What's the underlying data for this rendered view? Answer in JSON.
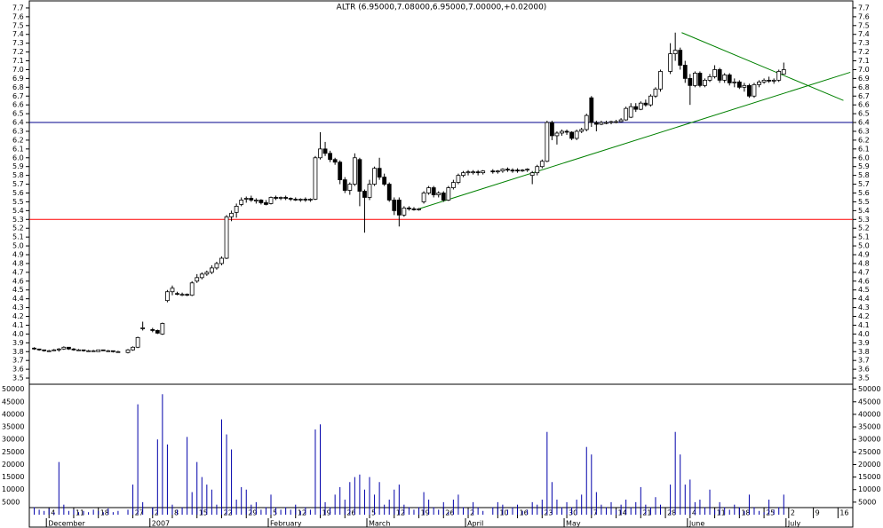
{
  "chart_data": {
    "type": "candlestick",
    "title": "ALTR (6.95000,7.08000,6.95000,7.00000,+0.02000)",
    "xlim": [
      -1,
      166
    ],
    "xticks": [
      {
        "value": 3,
        "label": "4"
      },
      {
        "value": 8,
        "label": "11"
      },
      {
        "value": 13,
        "label": "18"
      },
      {
        "value": 20,
        "label": "27"
      },
      {
        "value": 24,
        "label": "2"
      },
      {
        "value": 28,
        "label": "8"
      },
      {
        "value": 33,
        "label": "15"
      },
      {
        "value": 38,
        "label": "22"
      },
      {
        "value": 43,
        "label": "29"
      },
      {
        "value": 48,
        "label": "5"
      },
      {
        "value": 53,
        "label": "12"
      },
      {
        "value": 58,
        "label": "19"
      },
      {
        "value": 63,
        "label": "26"
      },
      {
        "value": 68,
        "label": "5"
      },
      {
        "value": 73,
        "label": "12"
      },
      {
        "value": 78,
        "label": "19"
      },
      {
        "value": 83,
        "label": "26"
      },
      {
        "value": 88,
        "label": "2"
      },
      {
        "value": 94,
        "label": "10"
      },
      {
        "value": 98,
        "label": "16"
      },
      {
        "value": 103,
        "label": "23"
      },
      {
        "value": 108,
        "label": "30"
      },
      {
        "value": 113,
        "label": "7"
      },
      {
        "value": 118,
        "label": "14"
      },
      {
        "value": 123,
        "label": "21"
      },
      {
        "value": 128,
        "label": "28"
      },
      {
        "value": 133,
        "label": "4"
      },
      {
        "value": 138,
        "label": "11"
      },
      {
        "value": 143,
        "label": "18"
      },
      {
        "value": 148,
        "label": "25"
      },
      {
        "value": 153,
        "label": "2"
      },
      {
        "value": 158,
        "label": "9"
      },
      {
        "value": 163,
        "label": "16"
      }
    ],
    "months": [
      {
        "value": 3,
        "label": "December"
      },
      {
        "value": 24,
        "label": "2007"
      },
      {
        "value": 48,
        "label": "February"
      },
      {
        "value": 68,
        "label": "March"
      },
      {
        "value": 88,
        "label": "April"
      },
      {
        "value": 108,
        "label": "May"
      },
      {
        "value": 133,
        "label": "June"
      },
      {
        "value": 153,
        "label": "July"
      }
    ],
    "ylim": [
      3.43,
      7.77
    ],
    "yticks": [
      3.5,
      3.6,
      3.7,
      3.8,
      3.9,
      {
        "value": 4,
        "label": "4.0"
      },
      4.1,
      4.2,
      4.3,
      4.4,
      4.5,
      4.6,
      4.7,
      4.8,
      4.9,
      {
        "value": 5,
        "label": "5.0"
      },
      5.1,
      5.2,
      5.3,
      5.4,
      5.5,
      5.6,
      5.7,
      5.8,
      5.9,
      {
        "value": 6,
        "label": "6.0"
      },
      6.1,
      6.2,
      6.3,
      6.4,
      6.5,
      6.6,
      6.7,
      6.8,
      6.9,
      {
        "value": 7,
        "label": "7.0"
      },
      7.1,
      7.2,
      7.3,
      7.4,
      7.5,
      7.6,
      7.7
    ],
    "up_color": "#ffffff",
    "down_color": "#000000",
    "ohlc": [
      [
        3.84,
        3.85,
        3.82,
        3.83
      ],
      [
        3.83,
        3.83,
        3.81,
        3.82
      ],
      [
        3.82,
        3.82,
        3.8,
        3.81
      ],
      [
        3.81,
        3.82,
        3.8,
        3.81
      ],
      [
        3.81,
        3.83,
        3.81,
        3.82
      ],
      [
        3.82,
        3.84,
        3.8,
        3.83
      ],
      [
        3.83,
        3.86,
        3.82,
        3.85
      ],
      [
        3.85,
        3.85,
        3.82,
        3.83
      ],
      [
        3.83,
        3.84,
        3.81,
        3.82
      ],
      [
        3.82,
        3.83,
        3.81,
        3.82
      ],
      [
        3.82,
        3.82,
        3.8,
        3.81
      ],
      [
        3.81,
        3.82,
        3.8,
        3.81
      ],
      [
        3.81,
        3.82,
        3.8,
        3.81
      ],
      [
        3.8,
        3.82,
        3.8,
        3.82
      ],
      [
        3.82,
        3.82,
        3.81,
        3.81
      ],
      [
        3.81,
        3.82,
        3.8,
        3.81
      ],
      [
        3.81,
        3.81,
        3.79,
        3.8
      ],
      [
        3.8,
        3.81,
        3.79,
        3.8
      ],
      null,
      [
        3.79,
        3.83,
        3.78,
        3.82
      ],
      [
        3.82,
        3.86,
        3.81,
        3.85
      ],
      [
        3.85,
        3.97,
        3.84,
        3.96
      ],
      [
        4.06,
        4.14,
        4.04,
        4.07
      ],
      null,
      [
        4.05,
        4.07,
        4.02,
        4.04
      ],
      [
        4.04,
        4.05,
        4.0,
        4.01
      ],
      [
        4.0,
        4.13,
        3.99,
        4.12
      ],
      [
        4.38,
        4.5,
        4.36,
        4.48
      ],
      [
        4.48,
        4.55,
        4.44,
        4.52
      ],
      [
        4.46,
        4.48,
        4.44,
        4.45
      ],
      [
        4.45,
        4.47,
        4.43,
        4.45
      ],
      [
        4.45,
        4.46,
        4.43,
        4.44
      ],
      [
        4.44,
        4.6,
        4.43,
        4.58
      ],
      [
        4.6,
        4.68,
        4.58,
        4.64
      ],
      [
        4.64,
        4.7,
        4.62,
        4.68
      ],
      [
        4.68,
        4.72,
        4.66,
        4.7
      ],
      [
        4.7,
        4.78,
        4.68,
        4.75
      ],
      [
        4.75,
        4.82,
        4.73,
        4.8
      ],
      [
        4.8,
        4.88,
        4.78,
        4.86
      ],
      [
        4.86,
        5.35,
        4.85,
        5.33
      ],
      [
        5.33,
        5.4,
        5.28,
        5.37
      ],
      [
        5.38,
        5.48,
        5.32,
        5.45
      ],
      [
        5.47,
        5.55,
        5.45,
        5.52
      ],
      [
        5.53,
        5.56,
        5.49,
        5.54
      ],
      [
        5.54,
        5.57,
        5.5,
        5.52
      ],
      [
        5.51,
        5.54,
        5.48,
        5.52
      ],
      [
        5.52,
        5.53,
        5.47,
        5.49
      ],
      [
        5.49,
        5.52,
        5.46,
        5.47
      ],
      [
        5.48,
        5.56,
        5.47,
        5.55
      ],
      [
        5.55,
        5.57,
        5.52,
        5.54
      ],
      [
        5.54,
        5.56,
        5.52,
        5.55
      ],
      [
        5.55,
        5.57,
        5.52,
        5.54
      ],
      [
        5.54,
        5.55,
        5.51,
        5.53
      ],
      [
        5.53,
        5.55,
        5.51,
        5.52
      ],
      [
        5.52,
        5.54,
        5.5,
        5.53
      ],
      [
        5.53,
        5.55,
        5.5,
        5.52
      ],
      [
        5.52,
        5.54,
        5.5,
        5.53
      ],
      [
        5.53,
        6.02,
        5.52,
        6.0
      ],
      [
        6.0,
        6.29,
        5.98,
        6.1
      ],
      [
        6.1,
        6.18,
        6.02,
        6.05
      ],
      [
        6.05,
        6.08,
        5.95,
        5.98
      ],
      [
        5.98,
        6.0,
        5.92,
        5.95
      ],
      [
        5.95,
        5.97,
        5.7,
        5.75
      ],
      [
        5.75,
        5.78,
        5.6,
        5.63
      ],
      [
        5.63,
        5.72,
        5.58,
        5.7
      ],
      [
        5.7,
        6.05,
        5.68,
        6.0
      ],
      [
        5.98,
        6.0,
        5.45,
        5.62
      ],
      [
        5.62,
        5.64,
        5.15,
        5.55
      ],
      [
        5.55,
        5.75,
        5.52,
        5.7
      ],
      [
        5.7,
        5.9,
        5.68,
        5.88
      ],
      [
        5.88,
        6.0,
        5.75,
        5.78
      ],
      [
        5.78,
        5.82,
        5.68,
        5.7
      ],
      [
        5.7,
        5.72,
        5.5,
        5.52
      ],
      [
        5.52,
        5.55,
        5.35,
        5.4
      ],
      [
        5.52,
        5.55,
        5.22,
        5.35
      ],
      [
        5.35,
        5.45,
        5.33,
        5.43
      ],
      [
        5.43,
        5.45,
        5.4,
        5.42
      ],
      [
        5.42,
        5.44,
        5.4,
        5.41
      ],
      [
        5.41,
        5.43,
        5.4,
        5.42
      ],
      [
        5.5,
        5.62,
        5.48,
        5.6
      ],
      [
        5.6,
        5.68,
        5.58,
        5.66
      ],
      [
        5.66,
        5.68,
        5.55,
        5.58
      ],
      [
        5.58,
        5.62,
        5.55,
        5.6
      ],
      [
        5.6,
        5.62,
        5.5,
        5.52
      ],
      [
        5.52,
        5.68,
        5.51,
        5.66
      ],
      [
        5.66,
        5.75,
        5.64,
        5.72
      ],
      [
        5.72,
        5.82,
        5.7,
        5.8
      ],
      [
        5.8,
        5.85,
        5.78,
        5.83
      ],
      [
        5.83,
        5.86,
        5.8,
        5.84
      ],
      [
        5.84,
        5.86,
        5.81,
        5.84
      ],
      [
        5.84,
        5.86,
        5.8,
        5.83
      ],
      [
        5.83,
        5.86,
        5.81,
        5.85
      ],
      null,
      [
        5.85,
        5.87,
        5.82,
        5.84
      ],
      [
        5.84,
        5.86,
        5.82,
        5.85
      ],
      [
        5.85,
        5.88,
        5.83,
        5.87
      ],
      [
        5.87,
        5.89,
        5.84,
        5.86
      ],
      [
        5.86,
        5.88,
        5.83,
        5.85
      ],
      [
        5.86,
        5.88,
        5.83,
        5.85
      ],
      [
        5.85,
        5.87,
        5.84,
        5.86
      ],
      [
        5.86,
        5.88,
        5.84,
        5.87
      ],
      [
        5.8,
        5.85,
        5.7,
        5.83
      ],
      [
        5.83,
        5.92,
        5.8,
        5.9
      ],
      [
        5.9,
        5.98,
        5.88,
        5.96
      ],
      [
        5.96,
        6.42,
        5.95,
        6.4
      ],
      [
        6.4,
        6.42,
        6.2,
        6.25
      ],
      [
        6.25,
        6.3,
        6.15,
        6.28
      ],
      [
        6.28,
        6.32,
        6.25,
        6.3
      ],
      [
        6.3,
        6.32,
        6.26,
        6.29
      ],
      [
        6.29,
        6.3,
        6.2,
        6.22
      ],
      [
        6.22,
        6.32,
        6.2,
        6.3
      ],
      [
        6.3,
        6.34,
        6.28,
        6.32
      ],
      [
        6.32,
        6.5,
        6.3,
        6.48
      ],
      [
        6.68,
        6.7,
        6.35,
        6.4
      ],
      [
        6.4,
        6.42,
        6.3,
        6.38
      ],
      [
        6.38,
        6.42,
        6.37,
        6.4
      ],
      [
        6.4,
        6.42,
        6.38,
        6.4
      ],
      [
        6.4,
        6.42,
        6.38,
        6.41
      ],
      [
        6.41,
        6.43,
        6.39,
        6.41
      ],
      [
        6.41,
        6.45,
        6.4,
        6.43
      ],
      [
        6.43,
        6.58,
        6.42,
        6.56
      ],
      [
        6.46,
        6.62,
        6.45,
        6.58
      ],
      [
        6.58,
        6.62,
        6.52,
        6.55
      ],
      [
        6.55,
        6.64,
        6.54,
        6.62
      ],
      [
        6.62,
        6.66,
        6.58,
        6.6
      ],
      [
        6.6,
        6.72,
        6.58,
        6.7
      ],
      [
        6.7,
        6.8,
        6.68,
        6.78
      ],
      [
        6.78,
        7.0,
        6.75,
        6.98
      ],
      null,
      [
        6.98,
        7.3,
        6.95,
        7.18
      ],
      [
        7.18,
        7.42,
        7.1,
        7.22
      ],
      [
        7.22,
        7.25,
        7.0,
        7.05
      ],
      [
        7.05,
        7.1,
        6.85,
        6.9
      ],
      [
        6.9,
        6.95,
        6.6,
        6.82
      ],
      [
        6.82,
        6.98,
        6.8,
        6.96
      ],
      [
        6.96,
        6.98,
        6.8,
        6.82
      ],
      [
        6.82,
        6.9,
        6.8,
        6.88
      ],
      [
        6.88,
        6.95,
        6.86,
        6.92
      ],
      [
        6.92,
        7.05,
        6.9,
        7.0
      ],
      [
        7.0,
        7.02,
        6.85,
        6.88
      ],
      [
        6.88,
        6.96,
        6.85,
        6.94
      ],
      [
        6.94,
        6.96,
        6.82,
        6.85
      ],
      [
        6.85,
        6.9,
        6.8,
        6.86
      ],
      [
        6.86,
        6.88,
        6.78,
        6.8
      ],
      [
        6.8,
        6.85,
        6.75,
        6.82
      ],
      [
        6.82,
        6.84,
        6.68,
        6.7
      ],
      [
        6.7,
        6.85,
        6.68,
        6.83
      ],
      [
        6.83,
        6.88,
        6.8,
        6.86
      ],
      [
        6.86,
        6.9,
        6.84,
        6.88
      ],
      [
        6.88,
        6.92,
        6.85,
        6.87
      ],
      [
        6.87,
        6.9,
        6.84,
        6.88
      ],
      [
        6.88,
        7.0,
        6.86,
        6.98
      ],
      [
        6.95,
        7.08,
        6.95,
        7.0
      ]
    ],
    "hlines": [
      {
        "value": 6.4,
        "color": "#00008b"
      },
      {
        "value": 5.3,
        "color": "#ff0000"
      }
    ],
    "trendlines": [
      {
        "color": "#008000",
        "x": [
          78,
          165.5
        ],
        "y": [
          5.42,
          6.97
        ]
      },
      {
        "color": "#008000",
        "x": [
          131.3,
          164.1
        ],
        "y": [
          7.42,
          6.65
        ]
      }
    ],
    "volume": {
      "color": "#0000aa",
      "ylim": [
        0,
        52000
      ],
      "yticks": [
        5000,
        10000,
        15000,
        20000,
        25000,
        30000,
        35000,
        40000,
        45000,
        50000
      ],
      "values": [
        3000,
        2000,
        1500,
        2500,
        1000,
        21000,
        4000,
        1500,
        2000,
        1000,
        1500,
        1000,
        2000,
        1500,
        1000,
        2500,
        1000,
        1500,
        null,
        2000,
        12000,
        44000,
        5000,
        null,
        3000,
        30000,
        48000,
        28000,
        4000,
        2000,
        3000,
        31000,
        9000,
        21000,
        15000,
        12000,
        10000,
        4000,
        38000,
        32000,
        26000,
        6000,
        11000,
        10000,
        4000,
        5000,
        2000,
        3000,
        8000,
        3000,
        2000,
        3000,
        2000,
        4000,
        1500,
        3000,
        2000,
        34000,
        36000,
        5000,
        3000,
        8000,
        11000,
        6000,
        13000,
        15000,
        16000,
        10000,
        15000,
        8000,
        13000,
        4000,
        6000,
        10000,
        12000,
        4000,
        3000,
        2000,
        3000,
        9000,
        6000,
        3000,
        2000,
        5000,
        1000,
        6000,
        8000,
        3000,
        2000,
        5000,
        3000,
        1500,
        null,
        3000,
        5000,
        4000,
        2000,
        3000,
        4000,
        1500,
        2000,
        5000,
        4000,
        6000,
        33000,
        13000,
        6000,
        3000,
        5000,
        3000,
        6000,
        8000,
        27000,
        24000,
        9000,
        4000,
        3000,
        5000,
        2000,
        4000,
        6000,
        3000,
        5000,
        11000,
        4000,
        3000,
        7000,
        4000,
        null,
        12000,
        33000,
        24000,
        12000,
        14000,
        5000,
        6000,
        3000,
        10000,
        2000,
        5000,
        3000,
        2000,
        4000,
        3000,
        1500,
        8000,
        3000,
        1500,
        1000,
        6000,
        2000,
        3000,
        8000
      ]
    }
  }
}
